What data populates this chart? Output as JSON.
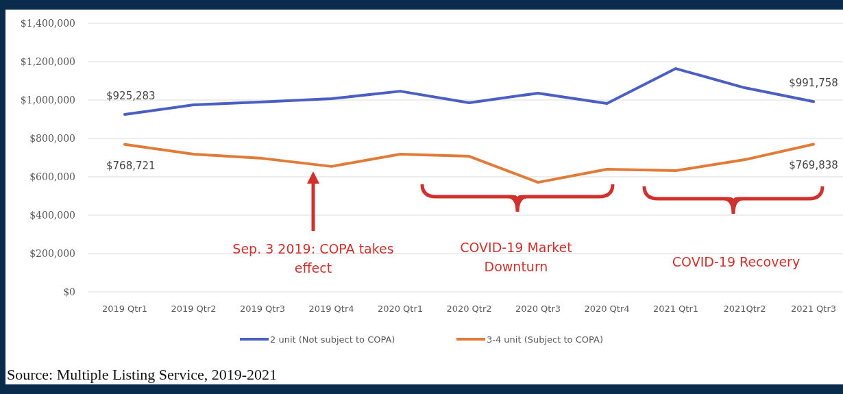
{
  "chart_data": {
    "type": "line",
    "categories": [
      "2019 Qtr1",
      "2019 Qtr2",
      "2019 Qtr3",
      "2019 Qtr4",
      "2020 Qtr1",
      "2020 Qtr2",
      "2020 Qtr3",
      "2020 Qtr4",
      "2021 Qtr1",
      "2021Qtr2",
      "2021 Qtr3"
    ],
    "series": [
      {
        "name": "2 unit (Not subject to COPA)",
        "color": "#4a5fc1",
        "values": [
          925283,
          975000,
          990000,
          1007000,
          1046000,
          986000,
          1036000,
          982000,
          1164000,
          1064000,
          991758
        ],
        "value_labels": [
          "$925,283",
          null,
          null,
          null,
          null,
          null,
          null,
          null,
          null,
          null,
          "$991,758"
        ]
      },
      {
        "name": "3-4 unit (Subject to COPA)",
        "color": "#e07b39",
        "values": [
          768721,
          718000,
          696000,
          654000,
          718000,
          707000,
          571000,
          639000,
          632000,
          689000,
          769838
        ],
        "value_labels": [
          "$768,721",
          null,
          null,
          null,
          null,
          null,
          null,
          null,
          null,
          null,
          "$769,838"
        ]
      }
    ],
    "ylim": [
      0,
      1400000
    ],
    "yticks": [
      {
        "value": 0,
        "label": "$0"
      },
      {
        "value": 200000,
        "label": "$200,000"
      },
      {
        "value": 400000,
        "label": "$400,000"
      },
      {
        "value": 600000,
        "label": "$600,000"
      },
      {
        "value": 800000,
        "label": "$800,000"
      },
      {
        "value": 1000000,
        "label": "$1,000,000"
      },
      {
        "value": 1200000,
        "label": "$1,200,000"
      },
      {
        "value": 1400000,
        "label": "$1,400,000"
      }
    ],
    "grid": "y",
    "legend": "bottom",
    "marker": "none",
    "line_style": "solid",
    "annotations": [
      "Sep. 3 2019: COPA takes effect",
      "COVID-19 Market Downturn",
      "COVID-19 Recovery",
      "Source: Multiple Listing Service, 2019-2021"
    ]
  }
}
